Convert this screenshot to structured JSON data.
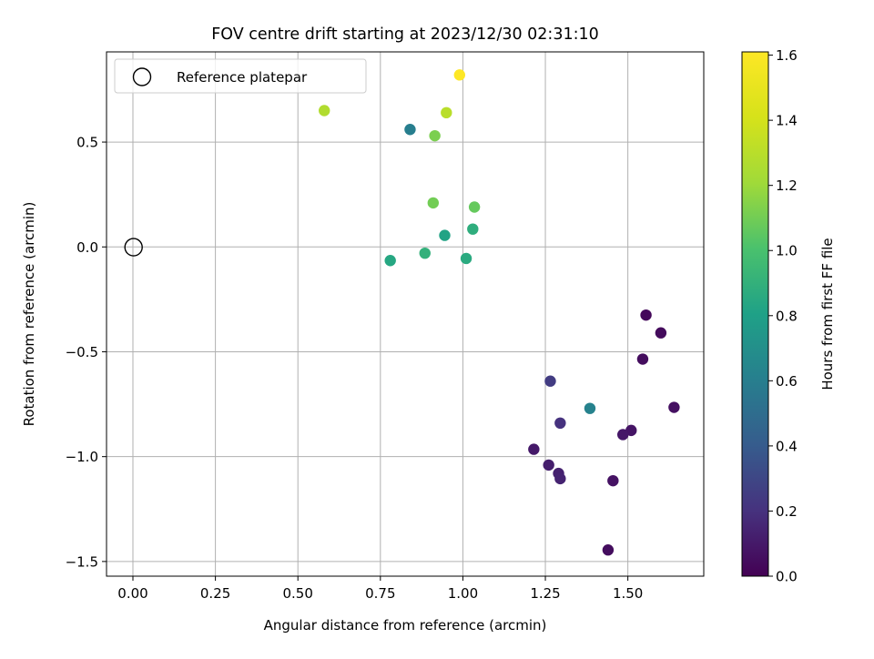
{
  "chart_data": {
    "type": "scatter",
    "title": "FOV centre drift starting at 2023/12/30 02:31:10",
    "xlabel": "Angular distance from reference (arcmin)",
    "ylabel": "Rotation from reference (arcmin)",
    "xlim": [
      -0.08,
      1.73
    ],
    "ylim": [
      -1.57,
      0.93
    ],
    "xticks": [
      0.0,
      0.25,
      0.5,
      0.75,
      1.0,
      1.25,
      1.5
    ],
    "xtick_labels": [
      "0.00",
      "0.25",
      "0.50",
      "0.75",
      "1.00",
      "1.25",
      "1.50"
    ],
    "yticks": [
      -1.5,
      -1.0,
      -0.5,
      0.0,
      0.5
    ],
    "ytick_labels": [
      "−1.5",
      "−1.0",
      "−0.5",
      "0.0",
      "0.5"
    ],
    "grid": true,
    "legend": {
      "position": "top-left",
      "entries": [
        "Reference platepar"
      ]
    },
    "reference_point": {
      "name": "Reference platepar",
      "x": 0.0,
      "y": 0.0
    },
    "colorbar": {
      "label": "Hours from first FF file",
      "colormap": "viridis",
      "range": [
        0.0,
        1.61
      ],
      "ticks": [
        0.0,
        0.2,
        0.4,
        0.6,
        0.8,
        1.0,
        1.2,
        1.4,
        1.6
      ],
      "tick_labels": [
        "0.0",
        "0.2",
        "0.4",
        "0.6",
        "0.8",
        "1.0",
        "1.2",
        "1.4",
        "1.6"
      ]
    },
    "points": [
      {
        "x": 0.99,
        "y": 0.82,
        "hours": 1.61
      },
      {
        "x": 0.58,
        "y": 0.65,
        "hours": 1.27
      },
      {
        "x": 0.95,
        "y": 0.64,
        "hours": 1.3
      },
      {
        "x": 0.84,
        "y": 0.56,
        "hours": 0.6
      },
      {
        "x": 0.915,
        "y": 0.53,
        "hours": 1.12
      },
      {
        "x": 0.91,
        "y": 0.21,
        "hours": 1.1
      },
      {
        "x": 1.035,
        "y": 0.19,
        "hours": 1.07
      },
      {
        "x": 1.03,
        "y": 0.085,
        "hours": 0.88
      },
      {
        "x": 0.945,
        "y": 0.055,
        "hours": 0.82
      },
      {
        "x": 0.885,
        "y": -0.03,
        "hours": 0.9
      },
      {
        "x": 0.78,
        "y": -0.065,
        "hours": 0.84
      },
      {
        "x": 1.01,
        "y": -0.055,
        "hours": 0.86
      },
      {
        "x": 1.555,
        "y": -0.325,
        "hours": 0.03
      },
      {
        "x": 1.6,
        "y": -0.41,
        "hours": 0.04
      },
      {
        "x": 1.545,
        "y": -0.535,
        "hours": 0.05
      },
      {
        "x": 1.265,
        "y": -0.64,
        "hours": 0.25
      },
      {
        "x": 1.385,
        "y": -0.77,
        "hours": 0.62
      },
      {
        "x": 1.64,
        "y": -0.765,
        "hours": 0.06
      },
      {
        "x": 1.295,
        "y": -0.84,
        "hours": 0.2
      },
      {
        "x": 1.51,
        "y": -0.875,
        "hours": 0.08
      },
      {
        "x": 1.485,
        "y": -0.895,
        "hours": 0.09
      },
      {
        "x": 1.215,
        "y": -0.965,
        "hours": 0.1
      },
      {
        "x": 1.26,
        "y": -1.04,
        "hours": 0.12
      },
      {
        "x": 1.29,
        "y": -1.08,
        "hours": 0.13
      },
      {
        "x": 1.295,
        "y": -1.105,
        "hours": 0.14
      },
      {
        "x": 1.455,
        "y": -1.115,
        "hours": 0.07
      },
      {
        "x": 1.44,
        "y": -1.445,
        "hours": 0.05
      }
    ]
  }
}
